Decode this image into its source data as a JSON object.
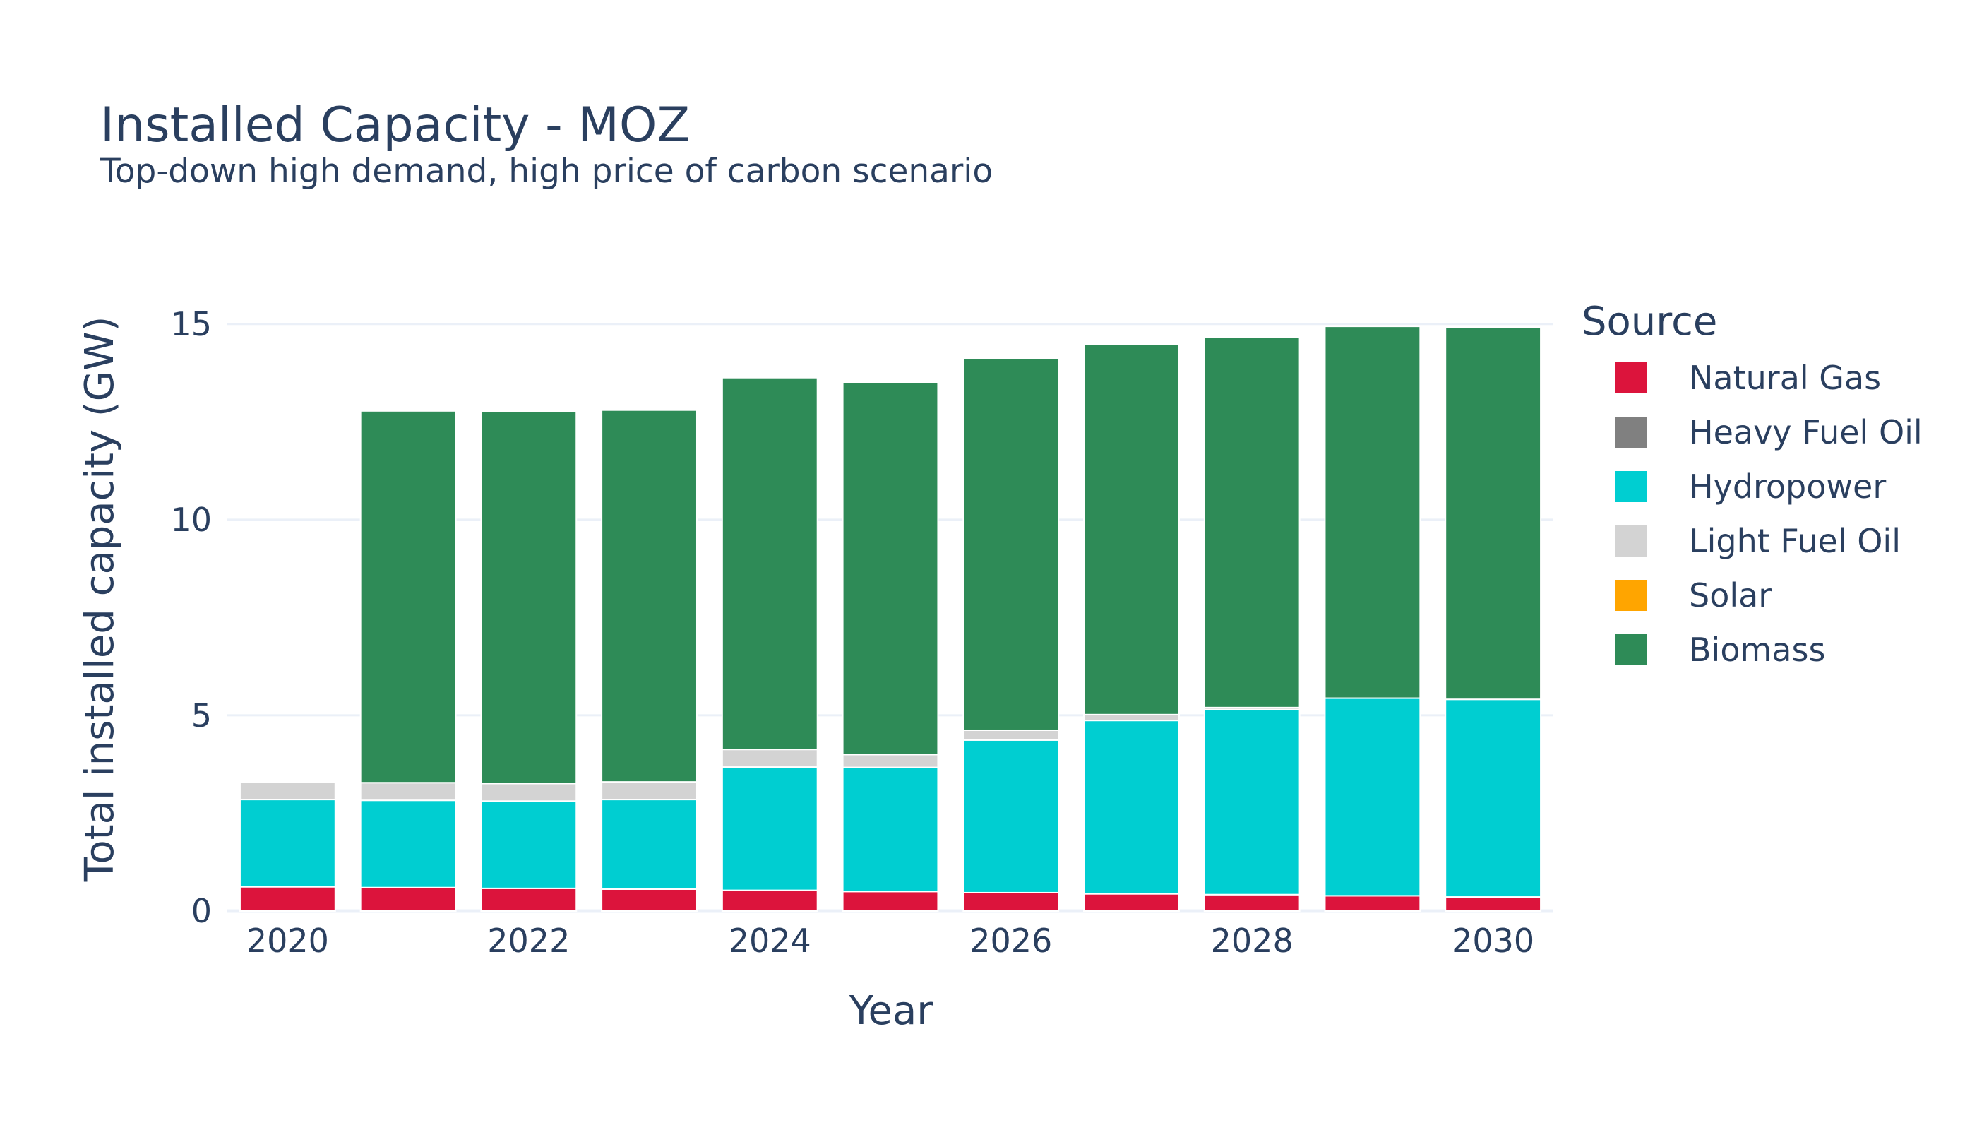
{
  "chart_data": {
    "type": "bar",
    "stacked": true,
    "title": "Installed Capacity - MOZ",
    "subtitle": "Top-down high demand, high price of carbon scenario",
    "xlabel": "Year",
    "ylabel": "Total installed capacity (GW)",
    "x": [
      2020,
      2021,
      2022,
      2023,
      2024,
      2025,
      2026,
      2027,
      2028,
      2029,
      2030
    ],
    "x_ticks": [
      "2020",
      "2022",
      "2024",
      "2026",
      "2028",
      "2030"
    ],
    "x_tick_values": [
      2020,
      2022,
      2024,
      2026,
      2028,
      2030
    ],
    "y_ticks": [
      "0",
      "5",
      "10",
      "15"
    ],
    "y_tick_values": [
      0,
      5,
      10,
      15
    ],
    "ylim": [
      0,
      15.7
    ],
    "grid": true,
    "legend": {
      "title": "Source",
      "placement": "right"
    },
    "series": [
      {
        "name": "Natural Gas",
        "color": "#dc143c",
        "values": [
          0.62,
          0.6,
          0.58,
          0.56,
          0.53,
          0.5,
          0.47,
          0.44,
          0.42,
          0.39,
          0.36
        ]
      },
      {
        "name": "Heavy Fuel Oil",
        "color": "#808080",
        "values": [
          0,
          0,
          0,
          0,
          0,
          0,
          0,
          0,
          0,
          0,
          0
        ]
      },
      {
        "name": "Hydropower",
        "color": "#00ced1",
        "values": [
          2.23,
          2.23,
          2.23,
          2.29,
          3.15,
          3.17,
          3.9,
          4.43,
          4.73,
          5.05,
          5.05
        ]
      },
      {
        "name": "Light Fuel Oil",
        "color": "#d3d3d3",
        "values": [
          0.45,
          0.45,
          0.45,
          0.45,
          0.45,
          0.33,
          0.25,
          0.15,
          0.05,
          0,
          0
        ]
      },
      {
        "name": "Solar",
        "color": "#ffa500",
        "values": [
          0,
          0,
          0,
          0,
          0,
          0,
          0,
          0,
          0,
          0,
          0
        ]
      },
      {
        "name": "Biomass",
        "color": "#2e8b57",
        "values": [
          0,
          9.5,
          9.5,
          9.5,
          9.5,
          9.5,
          9.5,
          9.47,
          9.47,
          9.5,
          9.5
        ]
      }
    ]
  }
}
